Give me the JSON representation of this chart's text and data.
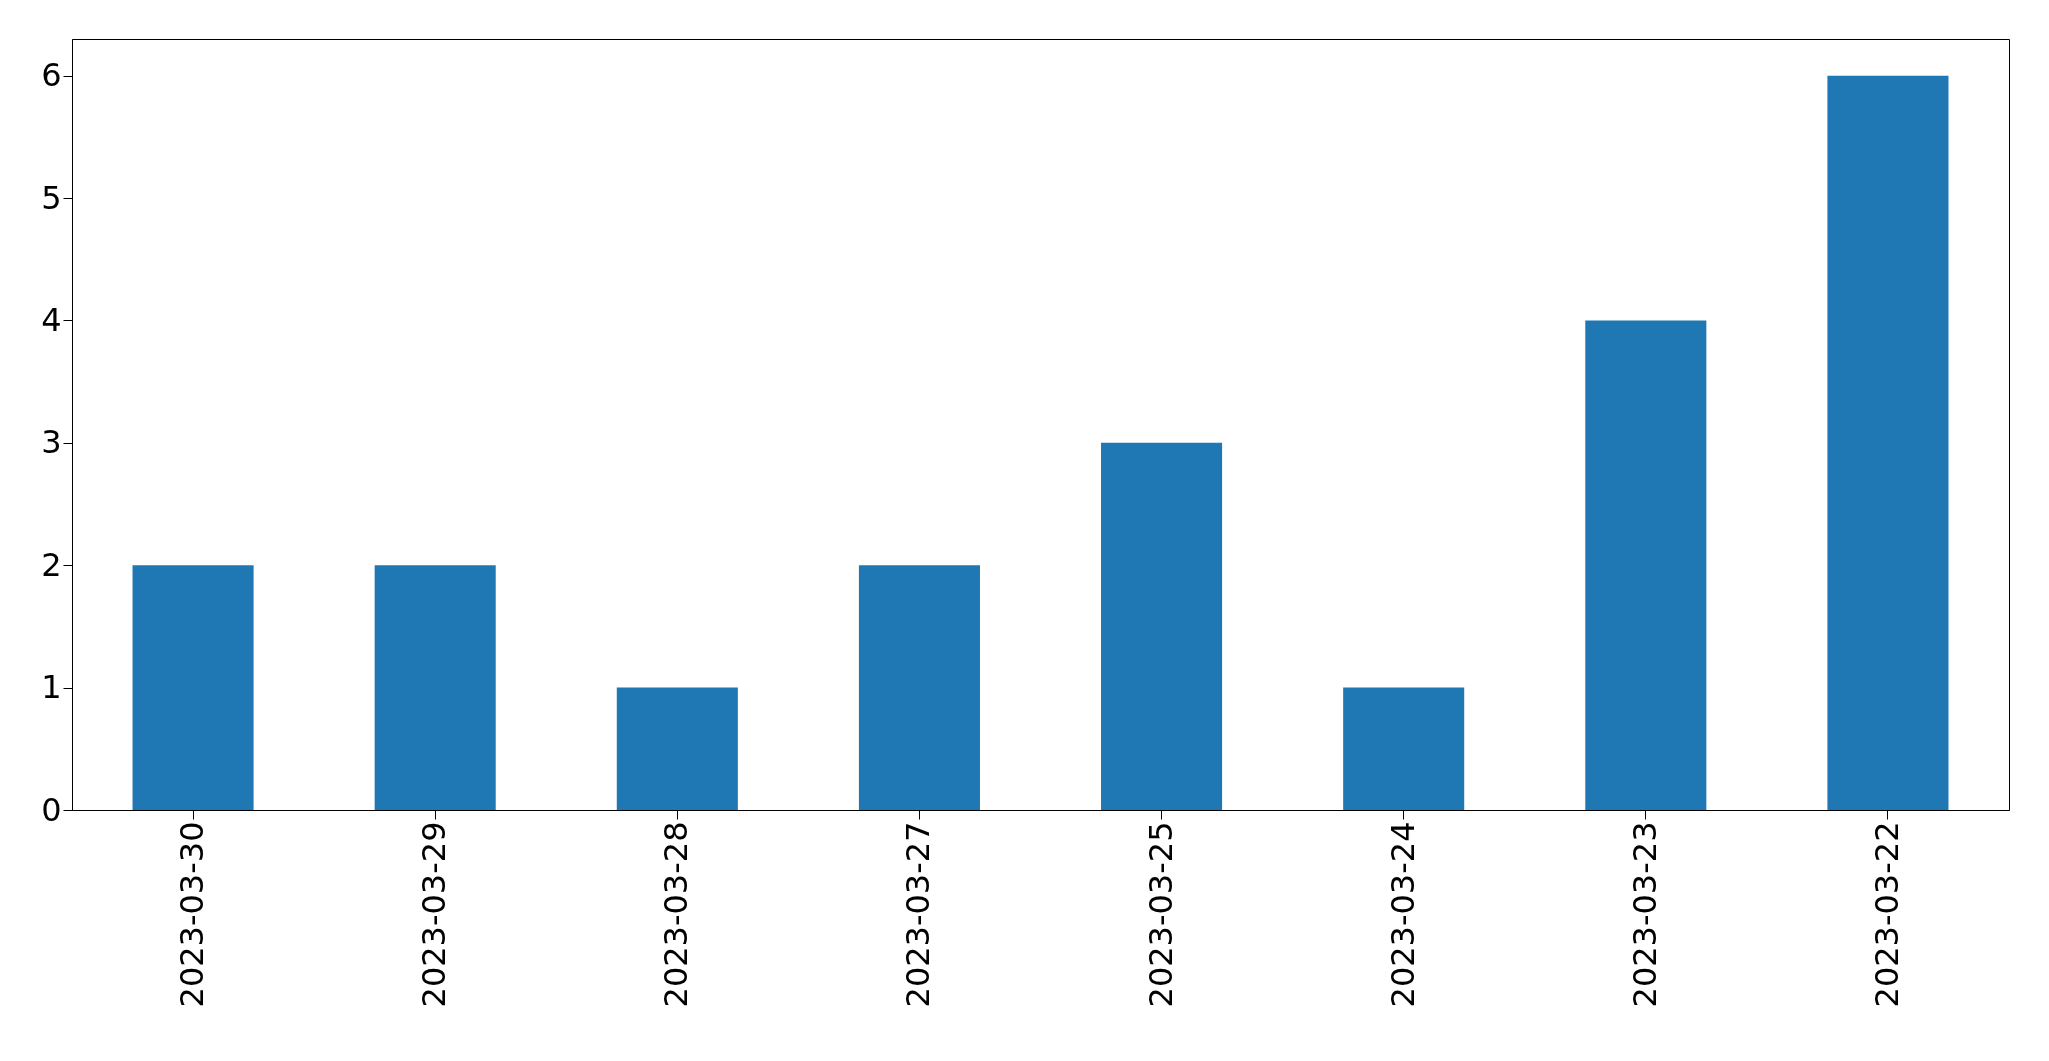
{
  "chart_data": {
    "type": "bar",
    "categories": [
      "2023-03-30",
      "2023-03-29",
      "2023-03-28",
      "2023-03-27",
      "2023-03-25",
      "2023-03-24",
      "2023-03-23",
      "2023-03-22"
    ],
    "values": [
      2,
      2,
      1,
      2,
      3,
      1,
      4,
      6
    ],
    "color": "#1f77b4",
    "ylim": [
      0,
      6.3
    ],
    "yticks": [
      0,
      1,
      2,
      3,
      4,
      5,
      6
    ]
  }
}
